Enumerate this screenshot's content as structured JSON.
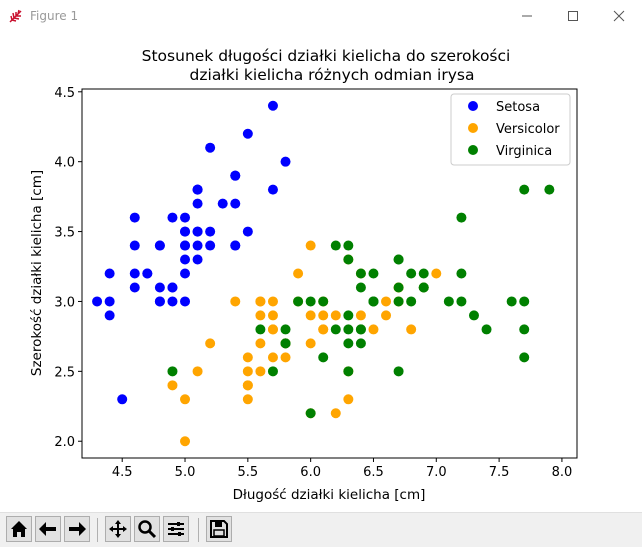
{
  "window": {
    "title": "Figure 1",
    "icon": "tk-feather-icon",
    "controls": [
      "minimize-icon",
      "maximize-icon",
      "close-icon"
    ]
  },
  "toolbar": {
    "buttons": [
      "home-icon",
      "back-icon",
      "forward-icon",
      "pan-icon",
      "zoom-icon",
      "subplots-icon",
      "save-icon"
    ]
  },
  "chart_data": {
    "type": "scatter",
    "title": "Stosunek długości działki kielicha do szerokości\ndziałki kielicha różnych odmian irysa",
    "xlabel": "Długość działki kielicha [cm]",
    "ylabel": "Szerokość działki kielicha [cm]",
    "xlim": [
      4.18,
      8.12
    ],
    "ylim": [
      1.88,
      4.52
    ],
    "xticks": [
      "4.5",
      "5.0",
      "5.5",
      "6.0",
      "6.5",
      "7.0",
      "7.5",
      "8.0"
    ],
    "yticks": [
      "2.0",
      "2.5",
      "3.0",
      "3.5",
      "4.0",
      "4.5"
    ],
    "grid": false,
    "legend": "top-right",
    "series": [
      {
        "name": "Setosa",
        "color": "#0000ff",
        "x": [
          5.1,
          4.9,
          4.7,
          4.6,
          5.0,
          5.4,
          4.6,
          5.0,
          4.4,
          4.9,
          5.4,
          4.8,
          4.8,
          4.3,
          5.8,
          5.7,
          5.4,
          5.1,
          5.7,
          5.1,
          5.4,
          5.1,
          4.6,
          5.1,
          4.8,
          5.0,
          5.0,
          5.2,
          5.2,
          4.7,
          4.8,
          5.4,
          5.2,
          5.5,
          4.9,
          5.0,
          5.5,
          4.9,
          4.4,
          5.1,
          5.0,
          4.5,
          4.4,
          5.0,
          5.1,
          4.8,
          5.1,
          4.6,
          5.3,
          5.0
        ],
        "y": [
          3.5,
          3.0,
          3.2,
          3.1,
          3.6,
          3.9,
          3.4,
          3.4,
          2.9,
          3.1,
          3.7,
          3.4,
          3.0,
          3.0,
          4.0,
          4.4,
          3.9,
          3.5,
          3.8,
          3.8,
          3.4,
          3.7,
          3.6,
          3.3,
          3.4,
          3.0,
          3.4,
          3.5,
          3.4,
          3.2,
          3.1,
          3.4,
          4.1,
          4.2,
          3.1,
          3.2,
          3.5,
          3.6,
          3.0,
          3.4,
          3.5,
          2.3,
          3.2,
          3.5,
          3.8,
          3.0,
          3.8,
          3.2,
          3.7,
          3.3
        ]
      },
      {
        "name": "Versicolor",
        "color": "#ffa500",
        "x": [
          7.0,
          6.4,
          6.9,
          5.5,
          6.5,
          5.7,
          6.3,
          4.9,
          6.6,
          5.2,
          5.0,
          5.9,
          6.0,
          6.1,
          5.6,
          6.7,
          5.6,
          5.8,
          6.2,
          5.6,
          5.9,
          6.1,
          6.3,
          6.1,
          6.4,
          6.6,
          6.8,
          6.7,
          6.0,
          5.7,
          5.5,
          5.5,
          5.8,
          6.0,
          5.4,
          6.0,
          6.7,
          6.3,
          5.6,
          5.5,
          5.5,
          6.1,
          5.8,
          5.0,
          5.6,
          5.7,
          5.7,
          6.2,
          5.1,
          5.7
        ],
        "y": [
          3.2,
          3.2,
          3.1,
          2.3,
          2.8,
          2.8,
          3.3,
          2.4,
          2.9,
          2.7,
          2.0,
          3.0,
          2.2,
          2.9,
          2.9,
          3.1,
          3.0,
          2.7,
          2.2,
          2.5,
          3.2,
          2.8,
          2.5,
          2.8,
          2.9,
          3.0,
          2.8,
          3.0,
          2.9,
          2.6,
          2.4,
          2.4,
          2.7,
          2.7,
          3.0,
          3.4,
          3.1,
          2.3,
          3.0,
          2.5,
          2.6,
          3.0,
          2.6,
          2.3,
          2.7,
          3.0,
          2.9,
          2.9,
          2.5,
          2.8
        ]
      },
      {
        "name": "Virginica",
        "color": "#008000",
        "x": [
          6.3,
          5.8,
          7.1,
          6.3,
          6.5,
          7.6,
          4.9,
          7.3,
          6.7,
          7.2,
          6.5,
          6.4,
          6.8,
          5.7,
          5.8,
          6.4,
          6.5,
          7.7,
          7.7,
          6.0,
          6.9,
          5.6,
          7.7,
          6.3,
          6.7,
          7.2,
          6.2,
          6.1,
          6.4,
          7.2,
          7.4,
          7.9,
          6.4,
          6.3,
          6.1,
          7.7,
          6.3,
          6.4,
          6.0,
          6.9,
          6.7,
          6.9,
          5.8,
          6.8,
          6.7,
          6.7,
          6.3,
          6.5,
          6.2,
          5.9
        ],
        "y": [
          3.3,
          2.7,
          3.0,
          2.9,
          3.0,
          3.0,
          2.5,
          2.9,
          2.5,
          3.6,
          3.2,
          2.7,
          3.0,
          2.5,
          2.8,
          3.2,
          3.0,
          3.8,
          2.6,
          2.2,
          3.2,
          2.8,
          2.8,
          2.7,
          3.3,
          3.2,
          2.8,
          3.0,
          2.8,
          3.0,
          2.8,
          3.8,
          2.8,
          2.8,
          2.6,
          3.0,
          3.4,
          3.1,
          3.0,
          3.1,
          3.1,
          3.1,
          2.7,
          3.2,
          3.3,
          3.0,
          2.5,
          3.0,
          3.4,
          3.0
        ]
      }
    ]
  }
}
